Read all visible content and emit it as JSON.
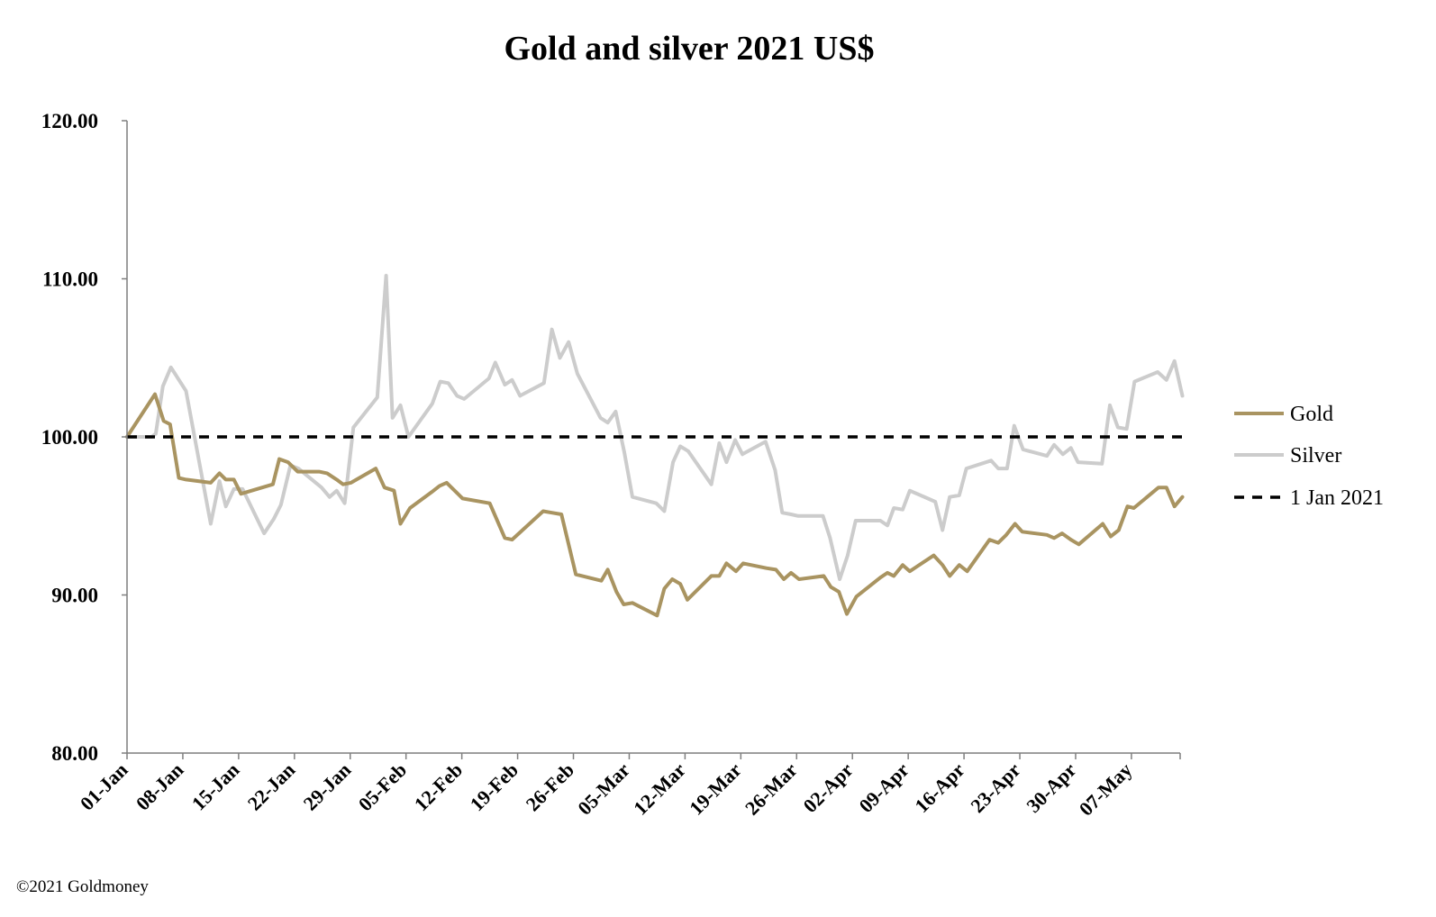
{
  "chart_data": {
    "type": "line",
    "title": "Gold and silver 2021  US$",
    "ylim": [
      80,
      120
    ],
    "yticks": [
      "80.00",
      "90.00",
      "100.00",
      "110.00",
      "120.00"
    ],
    "x_range": [
      0,
      132
    ],
    "xticks": [
      {
        "label": "01-Jan",
        "day": 0
      },
      {
        "label": "08-Jan",
        "day": 7
      },
      {
        "label": "15-Jan",
        "day": 14
      },
      {
        "label": "22-Jan",
        "day": 21
      },
      {
        "label": "29-Jan",
        "day": 28
      },
      {
        "label": "05-Feb",
        "day": 35
      },
      {
        "label": "12-Feb",
        "day": 42
      },
      {
        "label": "19-Feb",
        "day": 49
      },
      {
        "label": "26-Feb",
        "day": 56
      },
      {
        "label": "05-Mar",
        "day": 63
      },
      {
        "label": "12-Mar",
        "day": 70
      },
      {
        "label": "19-Mar",
        "day": 77
      },
      {
        "label": "26-Mar",
        "day": 84
      },
      {
        "label": "02-Apr",
        "day": 91
      },
      {
        "label": "09-Apr",
        "day": 98
      },
      {
        "label": "16-Apr",
        "day": 105
      },
      {
        "label": "23-Apr",
        "day": 112
      },
      {
        "label": "30-Apr",
        "day": 119
      },
      {
        "label": "07-May",
        "day": 126
      }
    ],
    "legend_position": "right",
    "series": [
      {
        "name": "Gold",
        "color": "#a99461",
        "x": [
          0,
          3.5,
          4.6,
          5.4,
          6.5,
          7.4,
          10.5,
          11.6,
          12.4,
          13.4,
          14.3,
          18.3,
          19.1,
          20.2,
          21.4,
          24.1,
          25.1,
          26.3,
          27.1,
          28.1,
          31.2,
          32.3,
          33.5,
          34.3,
          35.5,
          38.2,
          39.2,
          40.1,
          42.1,
          45.5,
          47.4,
          48.3,
          52.2,
          53.3,
          54.5,
          56.3,
          59.5,
          60.3,
          61.4,
          62.3,
          63.4,
          66.5,
          67.4,
          68.4,
          69.4,
          70.3,
          73.3,
          74.3,
          75.2,
          76.4,
          77.3,
          80.2,
          81.4,
          82.4,
          83.3,
          84.3,
          87.4,
          88.3,
          89.3,
          90.3,
          91.5,
          94.5,
          95.4,
          96.2,
          97.3,
          98.2,
          101.2,
          102.3,
          103.2,
          104.4,
          105.4,
          108.2,
          109.3,
          110.3,
          111.4,
          112.3,
          115.4,
          116.3,
          117.3,
          118.4,
          119.4,
          122.4,
          123.4,
          124.4,
          125.5,
          126.3,
          129.4,
          130.4,
          131.4,
          132.4
        ],
        "values": [
          100.0,
          102.7,
          101.0,
          100.8,
          97.4,
          97.3,
          97.1,
          97.7,
          97.3,
          97.3,
          96.4,
          97.0,
          98.6,
          98.4,
          97.8,
          97.8,
          97.7,
          97.3,
          97.0,
          97.1,
          98.0,
          96.8,
          96.6,
          94.5,
          95.5,
          96.5,
          96.9,
          97.1,
          96.1,
          95.8,
          93.6,
          93.5,
          95.3,
          95.2,
          95.1,
          91.3,
          90.9,
          91.6,
          90.2,
          89.4,
          89.5,
          88.7,
          90.4,
          91.0,
          90.7,
          89.7,
          91.2,
          91.2,
          92.0,
          91.5,
          92.0,
          91.7,
          91.6,
          91.0,
          91.4,
          91.0,
          91.2,
          90.5,
          90.2,
          88.8,
          89.9,
          91.1,
          91.4,
          91.2,
          91.9,
          91.5,
          92.5,
          91.9,
          91.2,
          91.9,
          91.5,
          93.5,
          93.3,
          93.8,
          94.5,
          94.0,
          93.8,
          93.6,
          93.9,
          93.5,
          93.2,
          94.5,
          93.7,
          94.1,
          95.6,
          95.5,
          96.8,
          96.8,
          95.6,
          96.2
        ]
      },
      {
        "name": "Silver",
        "color": "#cccccc",
        "x": [
          0,
          3.1,
          3.6,
          4.5,
          5.5,
          7.4,
          10.5,
          11.6,
          12.4,
          13.4,
          14.5,
          17.2,
          18.4,
          19.3,
          20.5,
          21.5,
          24.4,
          25.4,
          26.3,
          27.3,
          28.4,
          31.4,
          32.5,
          33.3,
          34.3,
          35.3,
          38.3,
          39.3,
          40.3,
          41.4,
          42.3,
          45.4,
          46.2,
          47.4,
          48.3,
          49.3,
          52.3,
          53.3,
          54.3,
          55.4,
          56.5,
          59.4,
          60.3,
          61.3,
          62.4,
          63.4,
          66.4,
          67.4,
          68.5,
          69.4,
          70.4,
          73.3,
          74.3,
          75.2,
          76.3,
          77.2,
          80.1,
          81.3,
          82.2,
          83.3,
          84.2,
          87.3,
          88.2,
          89.4,
          90.4,
          91.4,
          94.5,
          95.4,
          96.2,
          97.3,
          98.2,
          101.4,
          102.3,
          103.2,
          104.4,
          105.3,
          108.4,
          109.3,
          110.4,
          111.3,
          112.4,
          115.4,
          116.3,
          117.4,
          118.4,
          119.3,
          122.3,
          123.3,
          124.3,
          125.4,
          126.4,
          129.3,
          130.4,
          131.4,
          132.4
        ],
        "values": [
          100.0,
          100.0,
          100.2,
          103.2,
          104.4,
          102.9,
          94.5,
          97.2,
          95.6,
          96.7,
          96.7,
          93.9,
          94.8,
          95.7,
          98.2,
          98.0,
          96.8,
          96.2,
          96.6,
          95.8,
          100.6,
          102.5,
          110.2,
          101.2,
          102.0,
          100.0,
          102.1,
          103.5,
          103.4,
          102.6,
          102.4,
          103.7,
          104.7,
          103.3,
          103.6,
          102.6,
          103.4,
          106.8,
          105.0,
          106.0,
          104.0,
          101.2,
          100.9,
          101.6,
          99.0,
          96.2,
          95.8,
          95.3,
          98.4,
          99.4,
          99.1,
          97.0,
          99.6,
          98.4,
          99.8,
          98.9,
          99.7,
          97.9,
          95.2,
          95.1,
          95.0,
          95.0,
          93.6,
          91.0,
          92.5,
          94.7,
          94.7,
          94.4,
          95.5,
          95.4,
          96.6,
          95.9,
          94.1,
          96.2,
          96.3,
          98.0,
          98.5,
          98.0,
          98.0,
          100.7,
          99.2,
          98.8,
          99.5,
          98.9,
          99.3,
          98.4,
          98.3,
          102.0,
          100.6,
          100.5,
          103.5,
          104.1,
          103.6,
          104.8,
          102.6
        ]
      },
      {
        "name": "1 Jan 2021",
        "color": "#000000",
        "x": [
          0,
          132.4
        ],
        "values": [
          100.0,
          100.0
        ],
        "dashed": true
      }
    ]
  },
  "footer": {
    "copyright": "©2021 Goldmoney"
  }
}
